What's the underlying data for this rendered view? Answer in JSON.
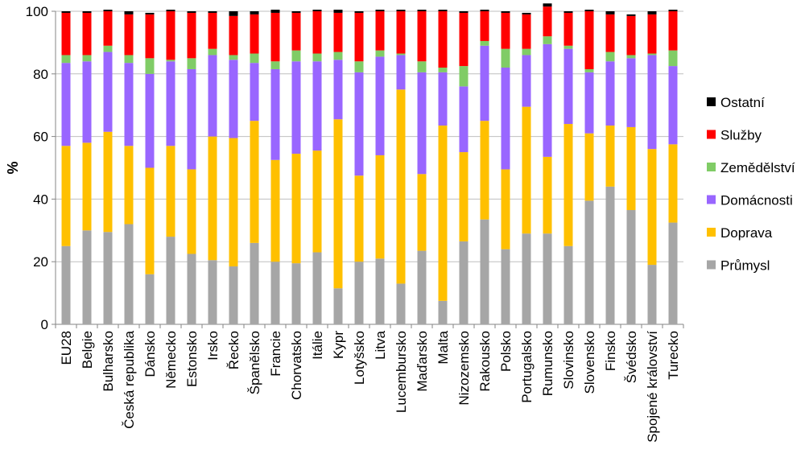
{
  "chart_data": {
    "type": "bar",
    "stacked": true,
    "title": "",
    "xlabel": "",
    "ylabel": "%",
    "ylim": [
      0,
      100
    ],
    "yticks": [
      0,
      20,
      40,
      60,
      80,
      100
    ],
    "grid": "horizontal",
    "legend_position": "right",
    "categories": [
      "EU28",
      "Belgie",
      "Bulharsko",
      "Česká republika",
      "Dánsko",
      "Německo",
      "Estonsko",
      "Irsko",
      "Řecko",
      "Španělsko",
      "Francie",
      "Chorvatsko",
      "Itálie",
      "Kypr",
      "Lotyšsko",
      "Litva",
      "Lucembursko",
      "Maďarsko",
      "Malta",
      "Nizozemsko",
      "Rakousko",
      "Polsko",
      "Portugalsko",
      "Rumunsko",
      "Slovinsko",
      "Slovensko",
      "Finsko",
      "Švédsko",
      "Spojené království",
      "Turecko"
    ],
    "series": [
      {
        "name": "Průmysl",
        "color": "#a6a6a6",
        "values": [
          25,
          30,
          29.5,
          32,
          16,
          28,
          22.5,
          20.5,
          18.5,
          26,
          20,
          19.5,
          23,
          11.5,
          20,
          21,
          13,
          23.5,
          7.5,
          26.5,
          33.5,
          24,
          29,
          29,
          25,
          39.5,
          44,
          36.5,
          19,
          32.5
        ]
      },
      {
        "name": "Doprava",
        "color": "#ffc000",
        "values": [
          32,
          28,
          32,
          25,
          34,
          29,
          27,
          39.5,
          41,
          39,
          32.5,
          35,
          32.5,
          54,
          27.5,
          33,
          62,
          24.5,
          56,
          28.5,
          31.5,
          25.5,
          40.5,
          24.5,
          39,
          21.5,
          19.5,
          26.5,
          37,
          25
        ]
      },
      {
        "name": "Domácnosti",
        "color": "#9966ff",
        "values": [
          26.5,
          26,
          25.5,
          26.5,
          30,
          27,
          32,
          26,
          25,
          18.5,
          29,
          29.5,
          28.5,
          19,
          33,
          31.5,
          11,
          32.5,
          17,
          21,
          24,
          32.5,
          16.5,
          36,
          24,
          19.5,
          20.5,
          22,
          30,
          25
        ]
      },
      {
        "name": "Zemědělství",
        "color": "#80cc66",
        "values": [
          2.5,
          2,
          2,
          2.5,
          5,
          0.5,
          3.5,
          2,
          1.5,
          3,
          2.5,
          3.5,
          2.5,
          2.5,
          3.5,
          2,
          0.5,
          3.5,
          1.5,
          6.5,
          1.5,
          6,
          2,
          2.5,
          1,
          1,
          3,
          1,
          0.5,
          5
        ]
      },
      {
        "name": "Služby",
        "color": "#ff0000",
        "values": [
          13.5,
          13.5,
          11,
          13,
          14,
          15.5,
          14.5,
          11.5,
          12.5,
          12.5,
          15.5,
          12,
          13.5,
          12.5,
          15.5,
          12.5,
          13.5,
          16,
          18,
          17,
          9.5,
          11.5,
          11,
          9.5,
          10.5,
          18.5,
          12,
          12.5,
          12.5,
          12.5
        ]
      },
      {
        "name": "Ostatní",
        "color": "#000000",
        "values": [
          0.5,
          0.5,
          0.5,
          1,
          0.5,
          0.5,
          0.5,
          0.5,
          1.5,
          1,
          1,
          0.5,
          0.5,
          1,
          0.5,
          0.5,
          0.5,
          0.5,
          0.5,
          0.5,
          0.5,
          0.5,
          0.5,
          1,
          0.5,
          0.5,
          1,
          0.5,
          1,
          0.5
        ]
      }
    ],
    "legend_order": [
      "Ostatní",
      "Služby",
      "Zemědělství",
      "Domácnosti",
      "Doprava",
      "Průmysl"
    ]
  }
}
